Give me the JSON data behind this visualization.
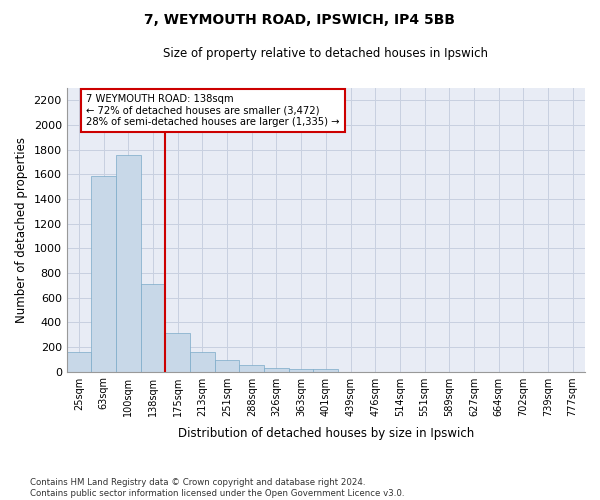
{
  "title1": "7, WEYMOUTH ROAD, IPSWICH, IP4 5BB",
  "title2": "Size of property relative to detached houses in Ipswich",
  "xlabel": "Distribution of detached houses by size in Ipswich",
  "ylabel": "Number of detached properties",
  "categories": [
    "25sqm",
    "63sqm",
    "100sqm",
    "138sqm",
    "175sqm",
    "213sqm",
    "251sqm",
    "288sqm",
    "326sqm",
    "363sqm",
    "401sqm",
    "439sqm",
    "476sqm",
    "514sqm",
    "551sqm",
    "589sqm",
    "627sqm",
    "664sqm",
    "702sqm",
    "739sqm",
    "777sqm"
  ],
  "values": [
    155,
    1590,
    1760,
    710,
    315,
    160,
    90,
    55,
    30,
    20,
    20,
    0,
    0,
    0,
    0,
    0,
    0,
    0,
    0,
    0,
    0
  ],
  "bar_color": "#c8d8e8",
  "bar_edge_color": "#7aaac8",
  "vline_index": 3,
  "vline_color": "#cc0000",
  "annotation_line1": "7 WEYMOUTH ROAD: 138sqm",
  "annotation_line2": "← 72% of detached houses are smaller (3,472)",
  "annotation_line3": "28% of semi-detached houses are larger (1,335) →",
  "annotation_box_color": "#ffffff",
  "annotation_box_edge": "#cc0000",
  "ylim": [
    0,
    2300
  ],
  "yticks": [
    0,
    200,
    400,
    600,
    800,
    1000,
    1200,
    1400,
    1600,
    1800,
    2000,
    2200
  ],
  "grid_color": "#c8d0e0",
  "bg_color": "#e8ecf5",
  "footnote": "Contains HM Land Registry data © Crown copyright and database right 2024.\nContains public sector information licensed under the Open Government Licence v3.0."
}
